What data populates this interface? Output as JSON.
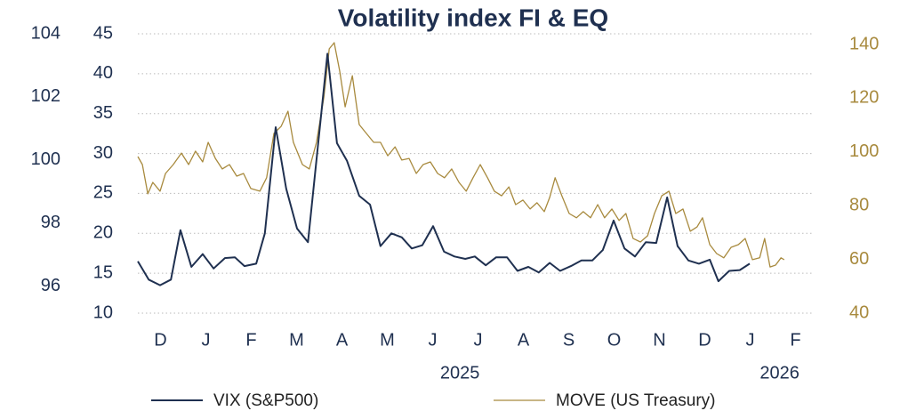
{
  "chart_data": {
    "type": "line",
    "title": "Volatility index FI & EQ",
    "xlim": [
      0,
      15
    ],
    "xticks": [
      {
        "value": 0.5,
        "label": "D"
      },
      {
        "value": 1.5,
        "label": "J"
      },
      {
        "value": 2.5,
        "label": "F"
      },
      {
        "value": 3.5,
        "label": "M"
      },
      {
        "value": 4.5,
        "label": "A"
      },
      {
        "value": 5.5,
        "label": "M"
      },
      {
        "value": 6.5,
        "label": "J"
      },
      {
        "value": 7.5,
        "label": "J"
      },
      {
        "value": 8.5,
        "label": "A"
      },
      {
        "value": 9.5,
        "label": "S"
      },
      {
        "value": 10.5,
        "label": "O"
      },
      {
        "value": 11.5,
        "label": "N"
      },
      {
        "value": 12.5,
        "label": "D"
      },
      {
        "value": 13.5,
        "label": "J"
      },
      {
        "value": 14.5,
        "label": "F"
      }
    ],
    "year_labels": [
      {
        "text": "2025",
        "x": 7.1
      },
      {
        "text": "2026",
        "x": 14.15
      }
    ],
    "ylim": [
      10,
      45
    ],
    "yticks": [
      10,
      15,
      20,
      25,
      30,
      35,
      40,
      45
    ],
    "y2lim": [
      40,
      144
    ],
    "y2ticks": [
      40,
      60,
      80,
      100,
      120,
      140
    ],
    "y3lim": [
      95.15,
      104
    ],
    "y3ticks": [
      96,
      98,
      100,
      102,
      104
    ],
    "grid": true,
    "legend": "bottom",
    "series": [
      {
        "name": "VIX (S&P500)",
        "color": "#1f3050",
        "axis": "y",
        "x": [
          0,
          0.24,
          0.49,
          0.73,
          0.94,
          1.18,
          1.43,
          1.67,
          1.92,
          2.14,
          2.35,
          2.61,
          2.8,
          3.04,
          3.27,
          3.51,
          3.75,
          4.18,
          4.39,
          4.61,
          4.88,
          5.12,
          5.35,
          5.59,
          5.82,
          6.04,
          6.27,
          6.51,
          6.75,
          6.98,
          7.22,
          7.43,
          7.67,
          7.9,
          8.14,
          8.37,
          8.61,
          8.84,
          9.08,
          9.31,
          9.55,
          9.78,
          10.02,
          10.25,
          10.49,
          10.73,
          10.96,
          11.2,
          11.43,
          11.67,
          11.9,
          12.14,
          12.37,
          12.61,
          12.8,
          13.04,
          13.27,
          13.49
        ],
        "values": [
          16.5,
          14.2,
          13.5,
          14.2,
          20.4,
          15.8,
          17.4,
          15.6,
          16.9,
          17.0,
          15.9,
          16.2,
          20.0,
          33.3,
          25.6,
          20.6,
          18.9,
          42.5,
          31.3,
          29.1,
          24.7,
          23.6,
          18.4,
          20.0,
          19.5,
          18.1,
          18.5,
          20.9,
          17.7,
          17.1,
          16.8,
          17.1,
          16.0,
          17.0,
          17.0,
          15.3,
          15.8,
          15.1,
          16.3,
          15.3,
          15.9,
          16.6,
          16.6,
          17.9,
          21.6,
          18.1,
          17.1,
          18.9,
          18.8,
          24.5,
          18.4,
          16.6,
          16.2,
          16.7,
          14.0,
          15.3,
          15.4,
          16.2
        ]
      },
      {
        "name": "MOVE (US Treasury)",
        "color": "#a88a3e",
        "axis": "y2",
        "x": [
          0,
          0.1,
          0.22,
          0.33,
          0.49,
          0.61,
          0.78,
          0.96,
          1.12,
          1.27,
          1.43,
          1.55,
          1.71,
          1.86,
          2.02,
          2.18,
          2.33,
          2.49,
          2.69,
          2.84,
          3.0,
          3.16,
          3.31,
          3.43,
          3.63,
          3.78,
          3.94,
          4.1,
          4.22,
          4.33,
          4.45,
          4.57,
          4.73,
          4.88,
          5.04,
          5.2,
          5.35,
          5.51,
          5.67,
          5.82,
          5.98,
          6.14,
          6.29,
          6.45,
          6.61,
          6.76,
          6.92,
          7.08,
          7.24,
          7.39,
          7.55,
          7.71,
          7.86,
          8.02,
          8.18,
          8.33,
          8.49,
          8.65,
          8.8,
          8.96,
          9.08,
          9.2,
          9.35,
          9.51,
          9.67,
          9.82,
          9.98,
          10.14,
          10.29,
          10.45,
          10.61,
          10.76,
          10.92,
          11.08,
          11.24,
          11.39,
          11.55,
          11.71,
          11.86,
          12.02,
          12.18,
          12.33,
          12.45,
          12.61,
          12.76,
          12.92,
          13.08,
          13.24,
          13.39,
          13.55,
          13.71,
          13.82,
          13.94,
          14.06,
          14.18,
          14.25
        ],
        "values": [
          98.3,
          95.3,
          84.4,
          88.7,
          85.4,
          92.0,
          95.3,
          99.6,
          95.3,
          100.3,
          96.3,
          103.6,
          97.6,
          93.7,
          95.3,
          91.0,
          92.0,
          86.4,
          85.4,
          90.4,
          106.9,
          109.6,
          115.2,
          103.6,
          95.3,
          93.7,
          103.6,
          120.2,
          138.4,
          140.7,
          130.1,
          116.8,
          128.4,
          110.2,
          106.9,
          103.6,
          103.6,
          98.6,
          101.9,
          97.0,
          97.6,
          92.0,
          95.3,
          96.3,
          92.0,
          90.4,
          93.7,
          88.7,
          85.4,
          90.4,
          95.3,
          90.4,
          85.4,
          83.7,
          87.0,
          80.4,
          82.1,
          78.8,
          81.1,
          77.8,
          83.1,
          90.4,
          83.7,
          77.1,
          75.5,
          77.8,
          75.5,
          80.4,
          75.5,
          78.8,
          74.5,
          77.1,
          67.8,
          66.5,
          68.8,
          77.1,
          83.7,
          85.4,
          77.1,
          78.8,
          70.5,
          72.1,
          75.5,
          65.5,
          62.2,
          60.6,
          64.5,
          65.5,
          67.8,
          59.9,
          60.6,
          67.8,
          57.2,
          57.9,
          60.6,
          59.9
        ]
      }
    ]
  }
}
